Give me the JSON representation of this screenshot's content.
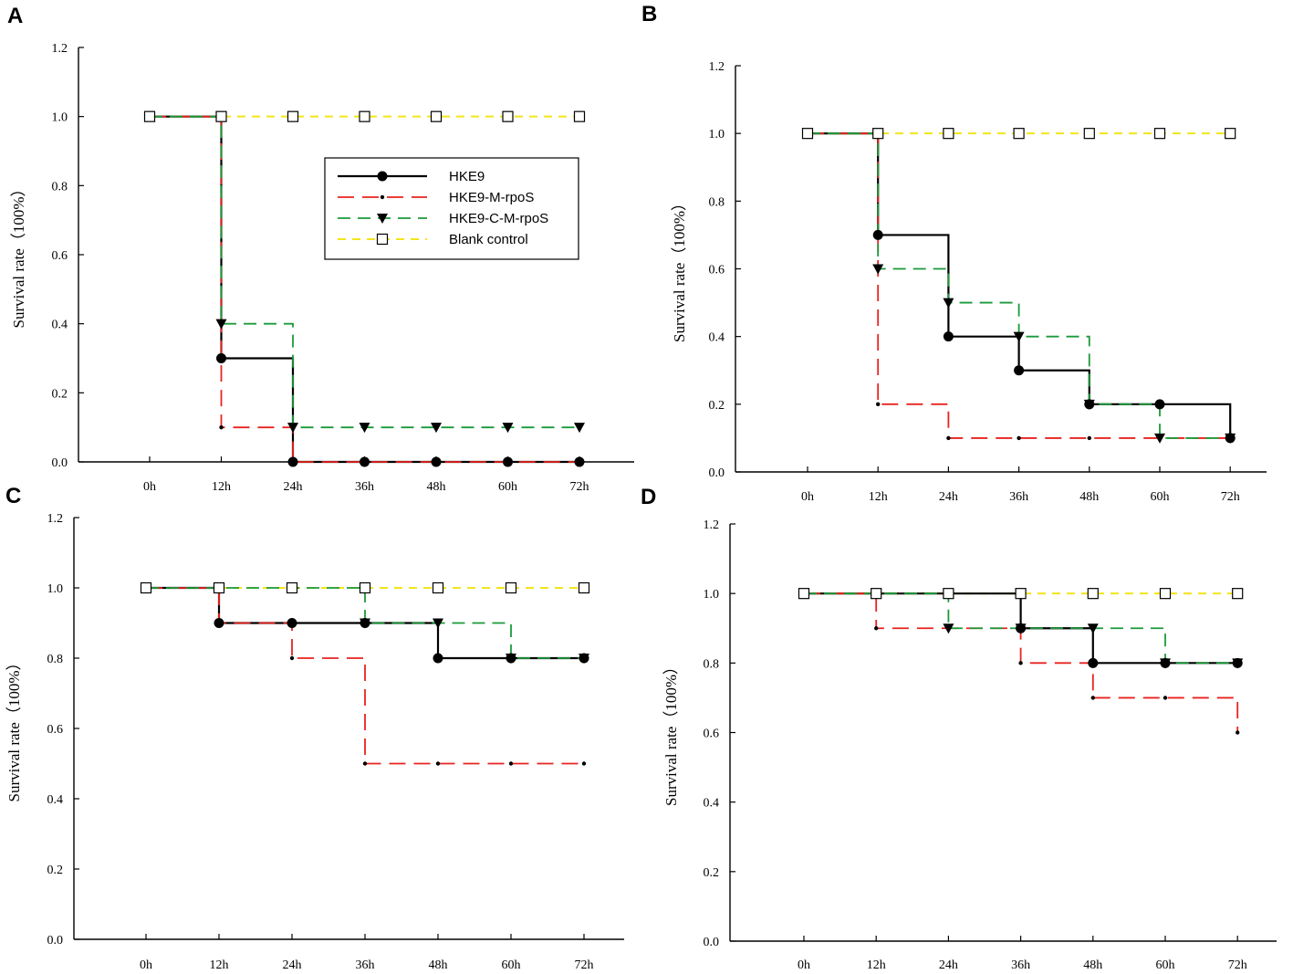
{
  "colors": {
    "HKE9": "#000000",
    "HKE9-M-rpoS": "#e8231f",
    "HKE9-C-M-rpoS": "#1a9a3a",
    "Blank control": "#f2e51a"
  },
  "chart_data": [
    {
      "type": "line",
      "panel": "A",
      "categories": [
        "0h",
        "12h",
        "24h",
        "36h",
        "48h",
        "60h",
        "72h"
      ],
      "ylabel": "Survival rate（100%）",
      "ylim": [
        0,
        1.2
      ],
      "yticks": [
        "0.0",
        "0.2",
        "0.4",
        "0.6",
        "0.8",
        "1.0",
        "1.2"
      ],
      "legend": true,
      "series": [
        {
          "name": "HKE9",
          "values": [
            1.0,
            0.3,
            0.0,
            0.0,
            0.0,
            0.0,
            0.0
          ]
        },
        {
          "name": "HKE9-M-rpoS",
          "values": [
            1.0,
            0.1,
            0.0,
            0.0,
            0.0,
            0.0,
            0.0
          ]
        },
        {
          "name": "HKE9-C-M-rpoS",
          "values": [
            1.0,
            0.4,
            0.1,
            0.1,
            0.1,
            0.1,
            0.1
          ]
        },
        {
          "name": "Blank control",
          "values": [
            1.0,
            1.0,
            1.0,
            1.0,
            1.0,
            1.0,
            1.0
          ]
        }
      ]
    },
    {
      "type": "line",
      "panel": "B",
      "categories": [
        "0h",
        "12h",
        "24h",
        "36h",
        "48h",
        "60h",
        "72h"
      ],
      "ylabel": "Survival rate（100%）",
      "ylim": [
        0,
        1.2
      ],
      "yticks": [
        "0.0",
        "0.2",
        "0.4",
        "0.6",
        "0.8",
        "1.0",
        "1.2"
      ],
      "legend": false,
      "series": [
        {
          "name": "HKE9",
          "values": [
            1.0,
            0.7,
            0.4,
            0.3,
            0.2,
            0.2,
            0.1
          ]
        },
        {
          "name": "HKE9-M-rpoS",
          "values": [
            1.0,
            0.2,
            0.1,
            0.1,
            0.1,
            0.1,
            0.1
          ]
        },
        {
          "name": "HKE9-C-M-rpoS",
          "values": [
            1.0,
            0.6,
            0.5,
            0.4,
            0.2,
            0.1,
            0.1
          ]
        },
        {
          "name": "Blank control",
          "values": [
            1.0,
            1.0,
            1.0,
            1.0,
            1.0,
            1.0,
            1.0
          ]
        }
      ]
    },
    {
      "type": "line",
      "panel": "C",
      "categories": [
        "0h",
        "12h",
        "24h",
        "36h",
        "48h",
        "60h",
        "72h"
      ],
      "ylabel": "Survival rate（100%）",
      "ylim": [
        0,
        1.2
      ],
      "yticks": [
        "0.0",
        "0.2",
        "0.4",
        "0.6",
        "0.8",
        "1.0",
        "1.2"
      ],
      "legend": false,
      "series": [
        {
          "name": "HKE9",
          "values": [
            1.0,
            0.9,
            0.9,
            0.9,
            0.8,
            0.8,
            0.8
          ]
        },
        {
          "name": "HKE9-M-rpoS",
          "values": [
            1.0,
            0.9,
            0.8,
            0.5,
            0.5,
            0.5,
            0.5
          ]
        },
        {
          "name": "HKE9-C-M-rpoS",
          "values": [
            1.0,
            1.0,
            1.0,
            0.9,
            0.9,
            0.8,
            0.8
          ]
        },
        {
          "name": "Blank control",
          "values": [
            1.0,
            1.0,
            1.0,
            1.0,
            1.0,
            1.0,
            1.0
          ]
        }
      ]
    },
    {
      "type": "line",
      "panel": "D",
      "categories": [
        "0h",
        "12h",
        "24h",
        "36h",
        "48h",
        "60h",
        "72h"
      ],
      "ylabel": "Survival rate（100%）",
      "ylim": [
        0,
        1.2
      ],
      "yticks": [
        "0.0",
        "0.2",
        "0.4",
        "0.6",
        "0.8",
        "1.0",
        "1.2"
      ],
      "legend": false,
      "series": [
        {
          "name": "HKE9",
          "values": [
            1.0,
            1.0,
            1.0,
            0.9,
            0.8,
            0.8,
            0.8
          ]
        },
        {
          "name": "HKE9-M-rpoS",
          "values": [
            1.0,
            0.9,
            0.9,
            0.8,
            0.7,
            0.7,
            0.6
          ]
        },
        {
          "name": "HKE9-C-M-rpoS",
          "values": [
            1.0,
            1.0,
            0.9,
            0.9,
            0.9,
            0.8,
            0.8
          ]
        },
        {
          "name": "Blank control",
          "values": [
            1.0,
            1.0,
            1.0,
            1.0,
            1.0,
            1.0,
            1.0
          ]
        }
      ]
    }
  ]
}
